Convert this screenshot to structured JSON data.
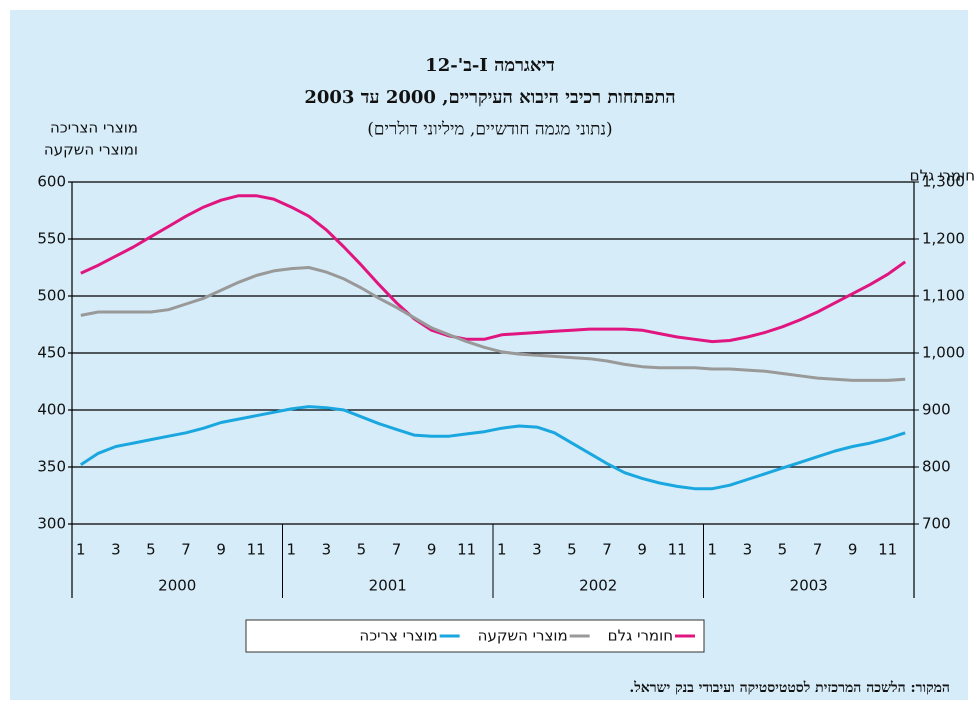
{
  "chart_data": {
    "type": "line",
    "title": "דיאגרמה I-ב'-12",
    "subtitle": "התפתחות רכיבי היבוא העיקריים, 2000 עד 2003",
    "note": "(נתוני מגמה חודשיים, מיליוני דולרים)",
    "y_label": [
      "מוצרי הצריכה",
      "ומוצרי השקעה"
    ],
    "y2_label": "חומרי גלם",
    "source": "המקור: הלשכה המרכזית לסטטיסטיקה ועיבודי בנק ישראל.",
    "categories": [
      "1",
      null,
      "3",
      null,
      "5",
      null,
      "7",
      null,
      "9",
      null,
      "11",
      null,
      "1",
      null,
      "3",
      null,
      "5",
      null,
      "7",
      null,
      "9",
      null,
      "11",
      null,
      "1",
      null,
      "3",
      null,
      "5",
      null,
      "7",
      null,
      "9",
      null,
      "11",
      null,
      "1",
      null,
      "3",
      null,
      "5",
      null,
      "7",
      null,
      "9",
      null,
      "11",
      null
    ],
    "years": [
      "2000",
      "2001",
      "2002",
      "2003"
    ],
    "ylim": [
      300,
      600
    ],
    "yticks": [
      300,
      350,
      400,
      450,
      500,
      550,
      600
    ],
    "y2lim": [
      700,
      1300
    ],
    "y2ticks": [
      700,
      800,
      900,
      {
        "value": 1000,
        "label": "1,000"
      },
      {
        "value": 1100,
        "label": "1,100"
      },
      {
        "value": 1200,
        "label": "1,200"
      },
      {
        "value": 1300,
        "label": "1,300"
      }
    ],
    "grid": true,
    "series": [
      {
        "name": "חומרי גלם",
        "color": "#e0157f",
        "axis": "y2",
        "values": [
          1140,
          1154,
          1170,
          1186,
          1204,
          1222,
          1240,
          1256,
          1268,
          1276,
          1276,
          1270,
          1256,
          1240,
          1216,
          1186,
          1154,
          1120,
          1088,
          1060,
          1040,
          1030,
          1024,
          1024,
          1032,
          1034,
          1036,
          1038,
          1040,
          1042,
          1042,
          1042,
          1040,
          1034,
          1028,
          1024,
          1020,
          1022,
          1028,
          1036,
          1046,
          1058,
          1072,
          1088,
          1104,
          1120,
          1138,
          1160
        ]
      },
      {
        "name": "מוצרי השקעה",
        "color": "#999999",
        "values": [
          483,
          486,
          486,
          486,
          486,
          488,
          493,
          498,
          505,
          512,
          518,
          522,
          524,
          525,
          521,
          515,
          507,
          498,
          490,
          481,
          472,
          466,
          460,
          455,
          451,
          449,
          448,
          447,
          446,
          445,
          443,
          440,
          438,
          437,
          437,
          437,
          436,
          436,
          435,
          434,
          432,
          430,
          428,
          427,
          426,
          426,
          426,
          427
        ]
      },
      {
        "name": "מוצרי צריכה",
        "color": "#1aa7e0",
        "values": [
          352,
          362,
          368,
          371,
          374,
          377,
          380,
          384,
          389,
          392,
          395,
          398,
          401,
          403,
          402,
          400,
          394,
          388,
          383,
          378,
          377,
          377,
          379,
          381,
          384,
          386,
          385,
          380,
          371,
          362,
          353,
          345,
          340,
          336,
          333,
          331,
          331,
          334,
          339,
          344,
          349,
          354,
          359,
          364,
          368,
          371,
          375,
          380
        ]
      }
    ]
  }
}
